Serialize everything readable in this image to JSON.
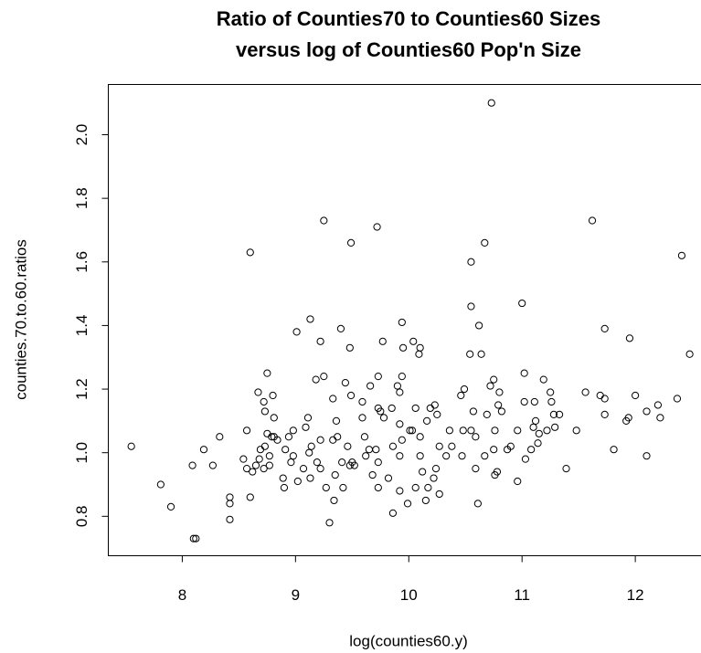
{
  "chart_data": {
    "type": "scatter",
    "title": [
      "Ratio of Counties70 to Counties60 Sizes",
      "versus log of Counties60 Pop'n Size"
    ],
    "x_label": "log(counties60.y)",
    "y_label": "counties.70.to.60.ratios",
    "xlim": [
      7.347,
      12.58
    ],
    "ylim": [
      0.676,
      2.158
    ],
    "xticks": [
      8,
      9,
      10,
      11,
      12
    ],
    "yticks": [
      0.8,
      {
        "value": 1,
        "label": "1.0"
      },
      1.2,
      1.4,
      1.6,
      1.8,
      {
        "value": 2,
        "label": "2.0"
      }
    ],
    "color": "#000000",
    "x": [
      7.55,
      7.81,
      7.9,
      8.09,
      8.1,
      8.12,
      8.19,
      8.27,
      8.33,
      8.42,
      8.42,
      8.42,
      8.54,
      8.57,
      8.57,
      8.6,
      8.6,
      8.67,
      8.75,
      8.8,
      8.81,
      9.13,
      9.01,
      9.18,
      9.22,
      9.25,
      9.25,
      9.3,
      9.4,
      9.49,
      9.48,
      9.72,
      9.77,
      9.73,
      9.66,
      9.94,
      9.95,
      10.04,
      10.1,
      10.09,
      10.73,
      10.55,
      10.67,
      10.55,
      10.62,
      10.64,
      10.54,
      11.0,
      11.02,
      11.62,
      12.41,
      12.48,
      11.73,
      11.95,
      12.37,
      12.2,
      12.22,
      12.1,
      12.1,
      12.0,
      11.92,
      11.94,
      11.81,
      11.73,
      11.73,
      11.69,
      11.56,
      11.48,
      11.39,
      11.28,
      11.33,
      11.25,
      11.19,
      11.26,
      11.22,
      11.29,
      11.12,
      11.1,
      11.11,
      11.15,
      11.08,
      11.14,
      11.02,
      10.96,
      10.96,
      11.03,
      10.87,
      10.9,
      10.82,
      10.8,
      10.79,
      10.72,
      10.75,
      10.69,
      10.76,
      10.75,
      10.78,
      10.76,
      10.61,
      10.67,
      10.59,
      10.55,
      10.48,
      10.47,
      10.57,
      10.49,
      10.46,
      10.59,
      10.36,
      10.38,
      10.33,
      10.27,
      10.24,
      10.22,
      10.27,
      10.17,
      10.15,
      10.23,
      10.19,
      10.25,
      10.16,
      10.1,
      10.03,
      10.01,
      10.06,
      10.1,
      10.12,
      10.06,
      9.99,
      9.92,
      9.86,
      9.92,
      9.86,
      9.94,
      9.92,
      9.92,
      9.9,
      9.94,
      9.85,
      9.78,
      9.73,
      9.75,
      9.71,
      9.73,
      9.68,
      9.73,
      9.82,
      9.62,
      9.65,
      9.61,
      9.59,
      9.59,
      9.49,
      9.44,
      9.33,
      9.36,
      9.33,
      9.37,
      9.46,
      9.5,
      9.52,
      9.48,
      9.41,
      9.42,
      9.35,
      9.34,
      9.27,
      9.22,
      9.19,
      9.22,
      9.14,
      9.12,
      9.13,
      9.07,
      9.02,
      9.09,
      9.11,
      8.98,
      8.94,
      8.98,
      8.96,
      8.9,
      8.89,
      8.91,
      8.84,
      8.81,
      8.79,
      8.75,
      8.73,
      8.77,
      8.77,
      8.72,
      8.68,
      8.65,
      8.62,
      8.69,
      8.73,
      8.72
    ],
    "y": [
      1.02,
      0.9,
      0.83,
      0.96,
      0.73,
      0.73,
      1.01,
      0.96,
      1.05,
      0.84,
      0.86,
      0.79,
      0.98,
      0.95,
      1.07,
      1.63,
      0.86,
      1.19,
      1.25,
      1.18,
      1.11,
      1.42,
      1.38,
      1.23,
      1.35,
      1.73,
      1.24,
      0.78,
      1.39,
      1.66,
      1.33,
      1.71,
      1.35,
      1.24,
      1.21,
      1.41,
      1.33,
      1.35,
      1.33,
      1.31,
      2.1,
      1.6,
      1.66,
      1.46,
      1.4,
      1.31,
      1.31,
      1.47,
      1.25,
      1.73,
      1.62,
      1.31,
      1.39,
      1.36,
      1.17,
      1.15,
      1.11,
      0.99,
      1.13,
      1.18,
      1.1,
      1.11,
      1.01,
      1.12,
      1.17,
      1.18,
      1.19,
      1.07,
      0.95,
      1.12,
      1.12,
      1.19,
      1.23,
      1.16,
      1.07,
      1.08,
      1.1,
      1.08,
      1.16,
      1.06,
      1.01,
      1.03,
      1.16,
      1.07,
      0.91,
      0.98,
      1.01,
      1.02,
      1.13,
      1.19,
      1.15,
      1.21,
      1.23,
      1.12,
      1.07,
      1.01,
      0.94,
      0.93,
      0.84,
      0.99,
      1.05,
      1.07,
      1.07,
      0.99,
      1.13,
      1.2,
      1.18,
      0.95,
      1.07,
      1.02,
      0.99,
      1.02,
      0.95,
      0.92,
      0.87,
      0.89,
      0.85,
      1.15,
      1.14,
      1.12,
      1.1,
      1.05,
      1.07,
      1.07,
      1.14,
      0.99,
      0.94,
      0.89,
      0.84,
      0.88,
      0.81,
      0.99,
      1.02,
      1.04,
      1.09,
      1.19,
      1.21,
      1.24,
      1.14,
      1.11,
      1.14,
      1.13,
      1.01,
      0.97,
      0.93,
      0.89,
      0.92,
      0.99,
      1.01,
      1.05,
      1.11,
      1.16,
      1.18,
      1.22,
      1.17,
      1.1,
      1.04,
      1.05,
      1.02,
      0.97,
      0.96,
      0.96,
      0.97,
      0.89,
      0.93,
      0.85,
      0.89,
      0.95,
      0.97,
      1.04,
      1.02,
      1.0,
      0.92,
      0.95,
      0.91,
      1.08,
      1.11,
      1.07,
      1.05,
      0.99,
      0.97,
      0.89,
      0.92,
      1.01,
      1.04,
      1.05,
      1.05,
      1.06,
      1.02,
      0.99,
      0.96,
      0.95,
      0.98,
      0.96,
      0.94,
      1.01,
      1.13,
      1.16
    ]
  }
}
